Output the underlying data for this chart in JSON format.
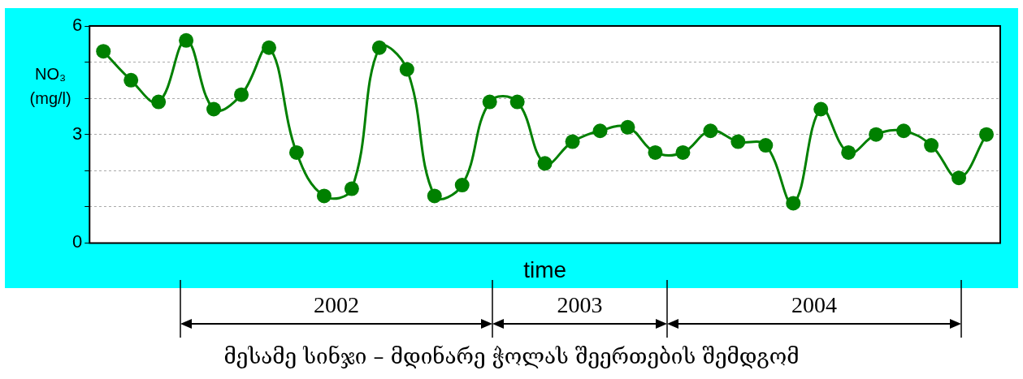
{
  "chart_data": {
    "type": "line",
    "xlabel": "time",
    "ylabel": "NO₃ (mg/l)",
    "categories": [
      null,
      null,
      null,
      null,
      null,
      null,
      null,
      null,
      null,
      null,
      null,
      null,
      null,
      null,
      null,
      null,
      null,
      null,
      null,
      null,
      null,
      null,
      null,
      null,
      null,
      null,
      null,
      null,
      null,
      null,
      null,
      null,
      null
    ],
    "series": [
      {
        "color": "#008000",
        "values": [
          5.3,
          4.5,
          3.9,
          5.6,
          3.7,
          4.1,
          5.4,
          2.5,
          1.3,
          1.5,
          5.4,
          4.8,
          1.3,
          1.6,
          3.9,
          3.9,
          2.2,
          2.8,
          3.1,
          3.2,
          2.5,
          2.5,
          3.1,
          2.8,
          2.7,
          1.1,
          3.7,
          2.5,
          3.0,
          3.1,
          2.7,
          1.8,
          3.0
        ]
      }
    ],
    "ylim": [
      0,
      6
    ],
    "yticks": [
      0,
      {
        "value": 1,
        "label": null
      },
      {
        "value": 2,
        "label": null
      },
      3,
      {
        "value": 4,
        "label": null
      },
      {
        "value": 5,
        "label": null
      },
      6
    ],
    "grid": "y",
    "legend": false,
    "marker": "circle",
    "line_style": "solid",
    "tick_labels": "y",
    "annotations": [
      "2002",
      "2003",
      "2004",
      "მესამე სინჯი – მდინარე ჭოლას შეერთების შემდგომ"
    ]
  }
}
